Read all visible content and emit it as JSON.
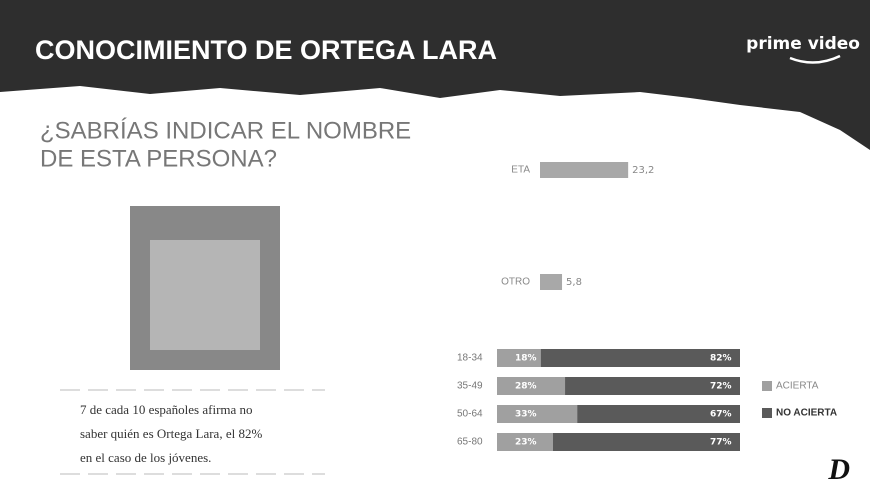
{
  "header": {
    "title": "CONOCIMIENTO DE ORTEGA LARA",
    "brand": "prime video"
  },
  "question": [
    "¿SABRÍAS INDICAR EL NOMBRE",
    "DE ESTA PERSONA?"
  ],
  "caption": [
    "7 de cada 10 españoles afirma no",
    "saber quién es Ortega Lara, el 82%",
    "en el caso de los jóvenes."
  ],
  "logo": "D",
  "chart_data": [
    {
      "type": "bar",
      "orientation": "horizontal",
      "categories": [
        "ETA",
        "OTRO"
      ],
      "values": [
        23.2,
        5.8
      ],
      "value_labels": [
        "23,2",
        "5,8"
      ],
      "color": "#a8a8a8"
    },
    {
      "type": "stacked-bar",
      "orientation": "horizontal",
      "categories": [
        "18-34",
        "35-49",
        "50-64",
        "65-80"
      ],
      "series": [
        {
          "name": "ACIERTA",
          "color": "#a0a0a0",
          "values": [
            18,
            28,
            33,
            23
          ],
          "value_labels": [
            "18%",
            "28%",
            "33%",
            "23%"
          ]
        },
        {
          "name": "NO ACIERTA",
          "color": "#5a5a5a",
          "values": [
            82,
            72,
            67,
            77
          ],
          "value_labels": [
            "82%",
            "72%",
            "67%",
            "77%"
          ]
        }
      ],
      "legend": "right"
    }
  ]
}
